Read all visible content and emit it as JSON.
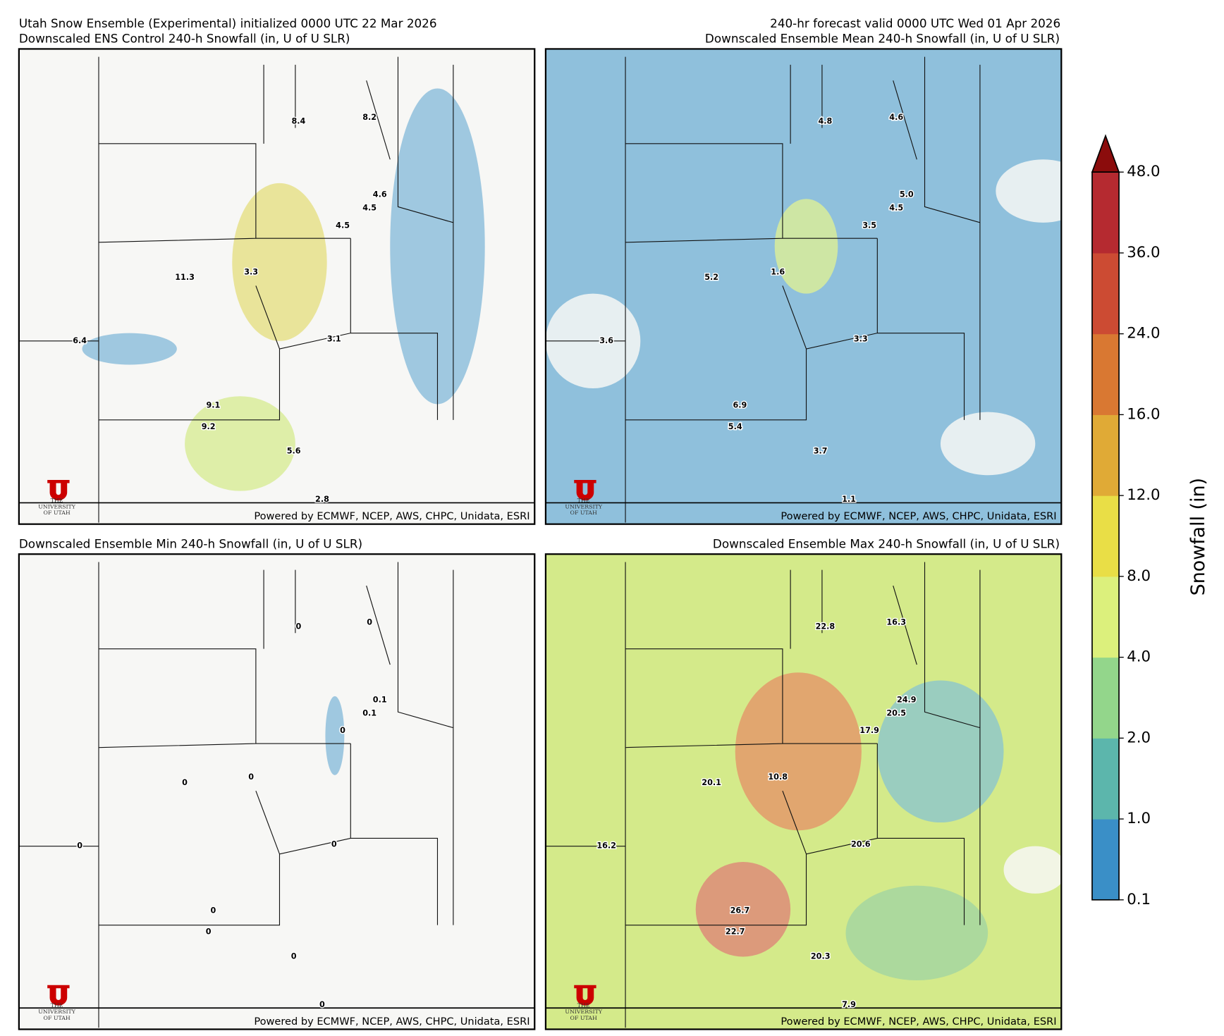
{
  "header": {
    "left_line1": "Utah Snow Ensemble (Experimental) initialized 0000 UTC 22 Mar 2026",
    "right_line1": "240-hr forecast valid 0000 UTC Wed 01 Apr 2026"
  },
  "footer": "Powered by ECMWF, NCEP, AWS, CHPC, Unidata, ESRI",
  "logo": [
    "THE",
    "UNIVERSITY",
    "OF UTAH"
  ],
  "panels": [
    {
      "title": "Downscaled ENS Control 240-h Snowfall (in, U of U SLR)",
      "labels": [
        "8.4",
        "8.2",
        "4.6",
        "4.5",
        "4.5",
        "11.3",
        "3.3",
        "6.4",
        "3.1",
        "9.1",
        "9.2",
        "5.6",
        "2.8"
      ]
    },
    {
      "title": "Downscaled Ensemble Mean 240-h Snowfall (in, U of U SLR)",
      "labels": [
        "4.8",
        "4.6",
        "5.0",
        "4.5",
        "3.5",
        "5.2",
        "1.6",
        "3.6",
        "3.3",
        "6.9",
        "5.4",
        "3.7",
        "1.1"
      ]
    },
    {
      "title": "Downscaled Ensemble Min 240-h Snowfall (in, U of U SLR)",
      "labels": [
        "0",
        "0",
        "0.1",
        "0.1",
        "0",
        "0",
        "0",
        "0",
        "0",
        "0",
        "0",
        "0",
        "0"
      ]
    },
    {
      "title": "Downscaled Ensemble Max 240-h Snowfall (in, U of U SLR)",
      "labels": [
        "22.8",
        "16.3",
        "24.9",
        "20.5",
        "17.9",
        "20.1",
        "10.8",
        "16.2",
        "20.6",
        "26.7",
        "22.7",
        "20.3",
        "7.9"
      ]
    }
  ],
  "colorbar": {
    "label": "Snowfall (in)",
    "levels": [
      0.1,
      {
        "value": 1,
        "label": "1.0"
      },
      {
        "value": 2,
        "label": "2.0"
      },
      {
        "value": 4,
        "label": "4.0"
      },
      {
        "value": 8,
        "label": "8.0"
      },
      {
        "value": 12,
        "label": "12.0"
      },
      {
        "value": 16,
        "label": "16.0"
      },
      {
        "value": 24,
        "label": "24.0"
      },
      {
        "value": 36,
        "label": "36.0"
      },
      {
        "value": 48,
        "label": "48.0"
      }
    ],
    "colors": [
      "#3a8fc7",
      "#5cb6ac",
      "#93d68b",
      "#dcf07c",
      "#e9de46",
      "#e0aa36",
      "#d97832",
      "#cc4b33",
      "#b52a30"
    ],
    "extend_color": "#8b0c0c"
  }
}
